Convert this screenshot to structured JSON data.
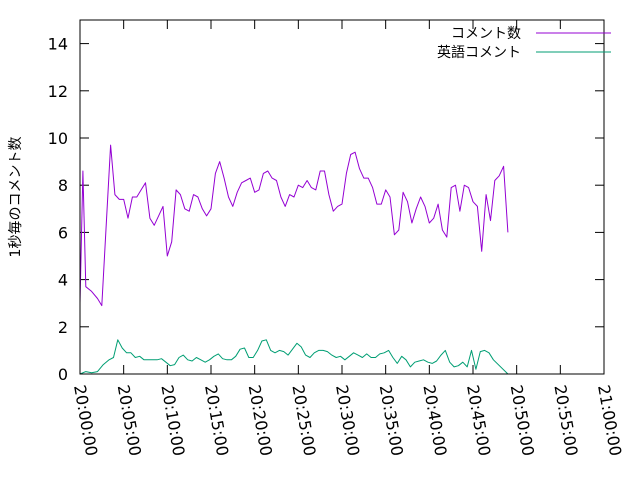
{
  "chart_data": {
    "type": "line",
    "title": "",
    "xlabel": "",
    "ylabel": "1秒毎のコメント数",
    "xlim": [
      "20:00:00",
      "21:00:00"
    ],
    "ylim": [
      0,
      15
    ],
    "grid": false,
    "legend_position": "top-right",
    "x_tick_labels": [
      "20:00:00",
      "20:05:00",
      "20:10:00",
      "20:15:00",
      "20:20:00",
      "20:25:00",
      "20:30:00",
      "20:35:00",
      "20:40:00",
      "20:45:00",
      "20:50:00",
      "20:55:00",
      "21:00:00"
    ],
    "y_tick_labels": [
      "0",
      "2",
      "4",
      "6",
      "8",
      "10",
      "12",
      "14"
    ],
    "series": [
      {
        "name": "コメント数",
        "color": "#9400d3",
        "points": [
          [
            "20:00:00",
            3.0
          ],
          [
            "20:00:20",
            8.6
          ],
          [
            "20:00:40",
            3.7
          ],
          [
            "20:01:20",
            3.5
          ],
          [
            "20:02:00",
            3.2
          ],
          [
            "20:02:30",
            2.9
          ],
          [
            "20:03:00",
            6.3
          ],
          [
            "20:03:30",
            9.7
          ],
          [
            "20:04:00",
            7.6
          ],
          [
            "20:04:30",
            7.4
          ],
          [
            "20:05:00",
            7.4
          ],
          [
            "20:05:30",
            6.6
          ],
          [
            "20:06:00",
            7.5
          ],
          [
            "20:06:30",
            7.5
          ],
          [
            "20:07:00",
            7.8
          ],
          [
            "20:07:30",
            8.1
          ],
          [
            "20:08:00",
            6.6
          ],
          [
            "20:08:30",
            6.3
          ],
          [
            "20:09:00",
            6.7
          ],
          [
            "20:09:30",
            7.1
          ],
          [
            "20:10:00",
            5.0
          ],
          [
            "20:10:30",
            5.6
          ],
          [
            "20:11:00",
            7.8
          ],
          [
            "20:11:30",
            7.6
          ],
          [
            "20:12:00",
            7.0
          ],
          [
            "20:12:30",
            6.9
          ],
          [
            "20:13:00",
            7.6
          ],
          [
            "20:13:30",
            7.5
          ],
          [
            "20:14:00",
            7.0
          ],
          [
            "20:14:30",
            6.7
          ],
          [
            "20:15:00",
            7.0
          ],
          [
            "20:15:30",
            8.5
          ],
          [
            "20:16:00",
            9.0
          ],
          [
            "20:16:30",
            8.3
          ],
          [
            "20:17:00",
            7.5
          ],
          [
            "20:17:30",
            7.1
          ],
          [
            "20:18:00",
            7.7
          ],
          [
            "20:18:30",
            8.1
          ],
          [
            "20:19:00",
            8.2
          ],
          [
            "20:19:30",
            8.3
          ],
          [
            "20:20:00",
            7.7
          ],
          [
            "20:20:30",
            7.8
          ],
          [
            "20:21:00",
            8.5
          ],
          [
            "20:21:30",
            8.6
          ],
          [
            "20:22:00",
            8.3
          ],
          [
            "20:22:30",
            8.2
          ],
          [
            "20:23:00",
            7.5
          ],
          [
            "20:23:30",
            7.1
          ],
          [
            "20:24:00",
            7.6
          ],
          [
            "20:24:30",
            7.5
          ],
          [
            "20:25:00",
            8.0
          ],
          [
            "20:25:30",
            7.9
          ],
          [
            "20:26:00",
            8.2
          ],
          [
            "20:26:30",
            7.9
          ],
          [
            "20:27:00",
            7.8
          ],
          [
            "20:27:30",
            8.6
          ],
          [
            "20:28:00",
            8.6
          ],
          [
            "20:28:30",
            7.6
          ],
          [
            "20:29:00",
            6.9
          ],
          [
            "20:29:30",
            7.1
          ],
          [
            "20:30:00",
            7.2
          ],
          [
            "20:30:30",
            8.5
          ],
          [
            "20:31:00",
            9.3
          ],
          [
            "20:31:30",
            9.4
          ],
          [
            "20:32:00",
            8.7
          ],
          [
            "20:32:30",
            8.3
          ],
          [
            "20:33:00",
            8.3
          ],
          [
            "20:33:30",
            7.9
          ],
          [
            "20:34:00",
            7.2
          ],
          [
            "20:34:30",
            7.2
          ],
          [
            "20:35:00",
            7.8
          ],
          [
            "20:35:30",
            7.5
          ],
          [
            "20:36:00",
            5.9
          ],
          [
            "20:36:30",
            6.1
          ],
          [
            "20:37:00",
            7.7
          ],
          [
            "20:37:30",
            7.3
          ],
          [
            "20:38:00",
            6.4
          ],
          [
            "20:38:30",
            7.0
          ],
          [
            "20:39:00",
            7.5
          ],
          [
            "20:39:30",
            7.1
          ],
          [
            "20:40:00",
            6.4
          ],
          [
            "20:40:30",
            6.6
          ],
          [
            "20:41:00",
            7.2
          ],
          [
            "20:41:30",
            6.1
          ],
          [
            "20:42:00",
            5.8
          ],
          [
            "20:42:30",
            7.9
          ],
          [
            "20:43:00",
            8.0
          ],
          [
            "20:43:30",
            6.9
          ],
          [
            "20:44:00",
            8.0
          ],
          [
            "20:44:30",
            7.9
          ],
          [
            "20:45:00",
            7.3
          ],
          [
            "20:45:30",
            7.1
          ],
          [
            "20:46:00",
            5.2
          ],
          [
            "20:46:30",
            7.6
          ],
          [
            "20:47:00",
            6.5
          ],
          [
            "20:47:30",
            8.2
          ],
          [
            "20:48:00",
            8.4
          ],
          [
            "20:48:30",
            8.8
          ],
          [
            "20:49:00",
            6.0
          ]
        ]
      },
      {
        "name": "英語コメント",
        "color": "#009e73",
        "points": [
          [
            "20:00:00",
            0.0
          ],
          [
            "20:00:40",
            0.1
          ],
          [
            "20:01:20",
            0.05
          ],
          [
            "20:02:00",
            0.1
          ],
          [
            "20:02:40",
            0.4
          ],
          [
            "20:03:20",
            0.6
          ],
          [
            "20:03:50",
            0.7
          ],
          [
            "20:04:20",
            1.45
          ],
          [
            "20:04:50",
            1.1
          ],
          [
            "20:05:20",
            0.9
          ],
          [
            "20:05:50",
            0.9
          ],
          [
            "20:06:20",
            0.7
          ],
          [
            "20:06:50",
            0.75
          ],
          [
            "20:07:20",
            0.6
          ],
          [
            "20:07:50",
            0.6
          ],
          [
            "20:08:20",
            0.6
          ],
          [
            "20:08:50",
            0.6
          ],
          [
            "20:09:20",
            0.65
          ],
          [
            "20:09:50",
            0.5
          ],
          [
            "20:10:20",
            0.35
          ],
          [
            "20:10:50",
            0.4
          ],
          [
            "20:11:20",
            0.7
          ],
          [
            "20:11:50",
            0.8
          ],
          [
            "20:12:20",
            0.6
          ],
          [
            "20:12:50",
            0.55
          ],
          [
            "20:13:20",
            0.7
          ],
          [
            "20:13:50",
            0.6
          ],
          [
            "20:14:20",
            0.5
          ],
          [
            "20:14:50",
            0.6
          ],
          [
            "20:15:20",
            0.75
          ],
          [
            "20:15:50",
            0.85
          ],
          [
            "20:16:20",
            0.65
          ],
          [
            "20:16:50",
            0.6
          ],
          [
            "20:17:20",
            0.6
          ],
          [
            "20:17:50",
            0.75
          ],
          [
            "20:18:20",
            1.05
          ],
          [
            "20:18:50",
            1.1
          ],
          [
            "20:19:20",
            0.7
          ],
          [
            "20:19:50",
            0.7
          ],
          [
            "20:20:20",
            1.0
          ],
          [
            "20:20:50",
            1.4
          ],
          [
            "20:21:20",
            1.45
          ],
          [
            "20:21:50",
            1.0
          ],
          [
            "20:22:20",
            0.9
          ],
          [
            "20:22:50",
            1.0
          ],
          [
            "20:23:20",
            0.95
          ],
          [
            "20:23:50",
            0.8
          ],
          [
            "20:24:20",
            1.05
          ],
          [
            "20:24:50",
            1.3
          ],
          [
            "20:25:20",
            1.15
          ],
          [
            "20:25:50",
            0.8
          ],
          [
            "20:26:20",
            0.7
          ],
          [
            "20:26:50",
            0.9
          ],
          [
            "20:27:20",
            1.0
          ],
          [
            "20:27:50",
            1.0
          ],
          [
            "20:28:20",
            0.95
          ],
          [
            "20:28:50",
            0.8
          ],
          [
            "20:29:20",
            0.7
          ],
          [
            "20:29:50",
            0.75
          ],
          [
            "20:30:20",
            0.6
          ],
          [
            "20:30:50",
            0.75
          ],
          [
            "20:31:20",
            0.9
          ],
          [
            "20:31:50",
            0.8
          ],
          [
            "20:32:20",
            0.7
          ],
          [
            "20:32:50",
            0.85
          ],
          [
            "20:33:20",
            0.7
          ],
          [
            "20:33:50",
            0.7
          ],
          [
            "20:34:20",
            0.85
          ],
          [
            "20:34:50",
            0.9
          ],
          [
            "20:35:20",
            1.0
          ],
          [
            "20:35:50",
            0.7
          ],
          [
            "20:36:20",
            0.45
          ],
          [
            "20:36:50",
            0.75
          ],
          [
            "20:37:20",
            0.6
          ],
          [
            "20:37:50",
            0.3
          ],
          [
            "20:38:20",
            0.5
          ],
          [
            "20:38:50",
            0.55
          ],
          [
            "20:39:20",
            0.6
          ],
          [
            "20:39:50",
            0.5
          ],
          [
            "20:40:20",
            0.45
          ],
          [
            "20:40:50",
            0.55
          ],
          [
            "20:41:20",
            0.8
          ],
          [
            "20:41:50",
            1.0
          ],
          [
            "20:42:20",
            0.5
          ],
          [
            "20:42:50",
            0.3
          ],
          [
            "20:43:20",
            0.35
          ],
          [
            "20:43:50",
            0.5
          ],
          [
            "20:44:20",
            0.3
          ],
          [
            "20:44:50",
            1.0
          ],
          [
            "20:45:20",
            0.2
          ],
          [
            "20:45:50",
            0.95
          ],
          [
            "20:46:20",
            1.0
          ],
          [
            "20:46:50",
            0.9
          ],
          [
            "20:47:20",
            0.6
          ],
          [
            "20:49:00",
            0.0
          ]
        ]
      }
    ]
  }
}
